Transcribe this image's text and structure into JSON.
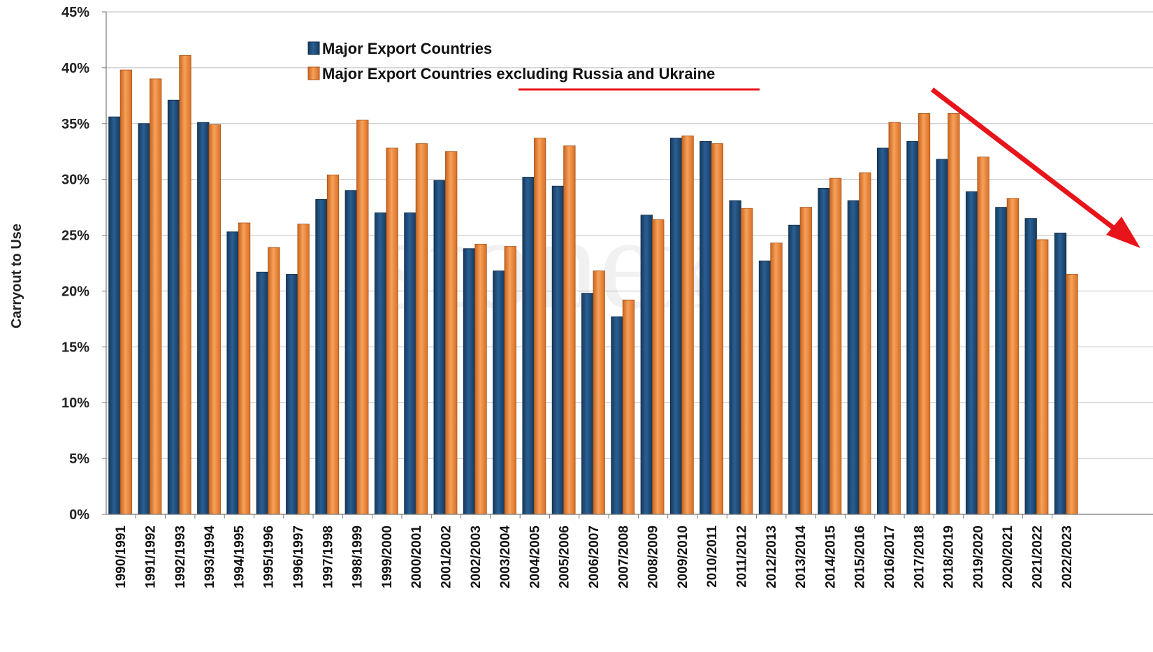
{
  "chart_data": {
    "type": "bar",
    "title": "",
    "xlabel": "",
    "ylabel": "Carryout to Use",
    "ylim": [
      0,
      45
    ],
    "y_ticks": [
      "0%",
      "5%",
      "10%",
      "15%",
      "20%",
      "25%",
      "30%",
      "35%",
      "40%",
      "45%"
    ],
    "grid": true,
    "legend_position": "top-left",
    "watermark": "stonex",
    "categories": [
      "1990/1991",
      "1991/1992",
      "1992/1993",
      "1993/1994",
      "1994/1995",
      "1995/1996",
      "1996/1997",
      "1997/1998",
      "1998/1999",
      "1999/2000",
      "2000/2001",
      "2001/2002",
      "2002/2003",
      "2003/2004",
      "2004/2005",
      "2005/2006",
      "2006/2007",
      "2007/2008",
      "2008/2009",
      "2009/2010",
      "2010/2011",
      "2011/2012",
      "2012/2013",
      "2013/2014",
      "2014/2015",
      "2015/2016",
      "2016/2017",
      "2017/2018",
      "2018/2019",
      "2019/2020",
      "2020/2021",
      "2021/2022",
      "2022/2023"
    ],
    "series": [
      {
        "name": "Major Export Countries",
        "color": "#1f4e79",
        "values": [
          35.6,
          35.0,
          37.1,
          35.1,
          25.3,
          21.7,
          21.5,
          28.2,
          29.0,
          27.0,
          27.0,
          29.9,
          23.8,
          21.8,
          30.2,
          29.4,
          19.8,
          17.7,
          26.8,
          33.7,
          33.4,
          28.1,
          22.7,
          25.9,
          29.2,
          28.1,
          32.8,
          33.4,
          31.8,
          28.9,
          27.5,
          26.5,
          25.2
        ]
      },
      {
        "name": "Major Export Countries excluding Russia and Ukraine",
        "color": "#f28a3a",
        "values": [
          39.8,
          39.0,
          41.1,
          34.9,
          26.1,
          23.9,
          26.0,
          30.4,
          35.3,
          32.8,
          33.2,
          32.5,
          24.2,
          24.0,
          33.7,
          33.0,
          21.8,
          19.2,
          26.4,
          33.9,
          33.2,
          27.4,
          24.3,
          27.5,
          30.1,
          30.6,
          35.1,
          35.9,
          35.9,
          32.0,
          28.3,
          24.6,
          21.5
        ]
      }
    ],
    "annotation": {
      "type": "arrow",
      "color": "#e8141b",
      "direction": "down-right",
      "underline_color": "#e8141b"
    }
  }
}
